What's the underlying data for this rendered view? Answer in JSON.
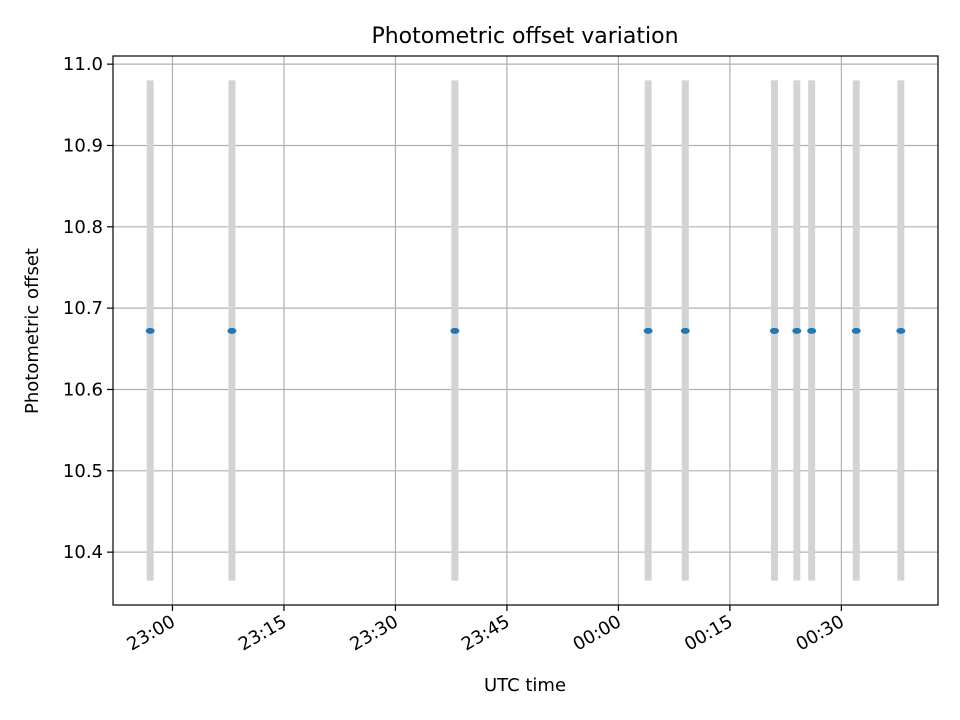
{
  "chart_data": {
    "type": "scatter",
    "title": "Photometric offset variation",
    "xlabel": "UTC time",
    "ylabel": "Photometric offset",
    "x_axis_type": "time",
    "x_tick_labels": [
      "23:00",
      "23:15",
      "23:30",
      "23:45",
      "00:00",
      "00:15",
      "00:30"
    ],
    "x_tick_times": [
      "23:00",
      "23:15",
      "23:30",
      "23:45",
      "00:00",
      "00:15",
      "00:30"
    ],
    "xlim": [
      "22:52",
      "00:43"
    ],
    "ylim": [
      10.335,
      11.01
    ],
    "y_ticks": [
      10.4,
      10.5,
      10.6,
      10.7,
      10.8,
      10.9,
      11.0
    ],
    "y_tick_labels": [
      "10.4",
      "10.5",
      "10.6",
      "10.7",
      "10.8",
      "10.9",
      "11.0"
    ],
    "grid": true,
    "series": [
      {
        "points": [
          {
            "x": "22:57",
            "y": 10.672
          },
          {
            "x": "23:08",
            "y": 10.672
          },
          {
            "x": "23:38",
            "y": 10.672
          },
          {
            "x": "00:04",
            "y": 10.672
          },
          {
            "x": "00:09",
            "y": 10.672
          },
          {
            "x": "00:21",
            "y": 10.672
          },
          {
            "x": "00:21",
            "y": 10.672
          },
          {
            "x": "00:24",
            "y": 10.672
          },
          {
            "x": "00:26",
            "y": 10.672
          },
          {
            "x": "00:32",
            "y": 10.672
          },
          {
            "x": "00:38",
            "y": 10.672
          }
        ]
      }
    ],
    "bands": {
      "x": [
        "22:57",
        "23:08",
        "23:38",
        "00:04",
        "00:09",
        "00:21",
        "00:21",
        "00:24",
        "00:26",
        "00:32",
        "00:38"
      ],
      "ymin": 10.365,
      "ymax": 10.98
    },
    "colors": {
      "points": "#1f77b4",
      "bands": "#d3d3d3",
      "grid": "#b0b0b0",
      "axes": "#000000"
    }
  }
}
